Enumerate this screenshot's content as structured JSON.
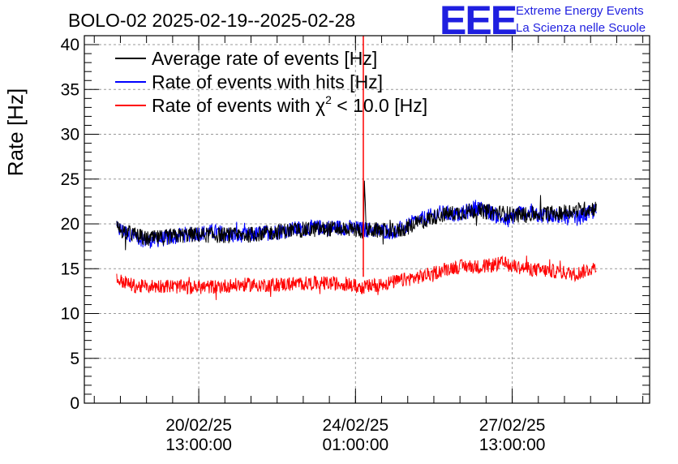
{
  "chart_data": {
    "type": "line",
    "title": "BOLO-02 2025-02-19--2025-02-28",
    "ylabel": "Rate [Hz]",
    "xlabel": "",
    "ylim": [
      0,
      41
    ],
    "yticks": [
      0,
      5,
      10,
      15,
      20,
      25,
      30,
      35,
      40
    ],
    "ytick_labels": [
      "0",
      "5",
      "10",
      "15",
      "20",
      "25",
      "30",
      "35",
      "40"
    ],
    "xlim_days": [
      0,
      10.82
    ],
    "xticks": [
      {
        "t": 2.19,
        "date": "20/02/25",
        "time": "13:00:00"
      },
      {
        "t": 5.19,
        "date": "24/02/25",
        "time": "01:00:00"
      },
      {
        "t": 8.19,
        "date": "27/02/25",
        "time": "13:00:00"
      }
    ],
    "grid": true,
    "legend": {
      "position": "top-left",
      "entries": [
        {
          "label": "Average rate of events [Hz]",
          "color": "#000000"
        },
        {
          "label": "Rate of events with hits [Hz]",
          "color": "#0000ff"
        },
        {
          "label_parts": [
            "Rate of events with ",
            "χ",
            "2",
            " < 10.0 [Hz]"
          ],
          "color": "#ff0000"
        }
      ]
    },
    "series": [
      {
        "name": "Average rate of events",
        "color": "#000000",
        "x": [
          0.62,
          1.2,
          2.0,
          3.0,
          4.0,
          5.0,
          5.34,
          5.36,
          5.4,
          6.0,
          6.8,
          7.5,
          8.3,
          9.0,
          9.8
        ],
        "y": [
          19.5,
          18.3,
          18.8,
          18.7,
          19.3,
          19.5,
          19.2,
          24.0,
          19.3,
          19.2,
          21.0,
          21.5,
          21.0,
          21.2,
          21.8
        ]
      },
      {
        "name": "Rate of events with hits",
        "color": "#0000ff",
        "x": [
          0.62,
          0.9,
          1.2,
          1.6,
          2.0,
          2.5,
          3.0,
          3.5,
          4.0,
          4.5,
          5.0,
          5.3,
          5.6,
          6.0,
          6.3,
          6.8,
          7.2,
          7.5,
          7.8,
          8.1,
          8.3,
          8.6,
          9.0,
          9.4,
          9.8
        ],
        "y": [
          19.5,
          18.8,
          18.1,
          18.4,
          18.9,
          19.1,
          18.6,
          19.0,
          19.4,
          19.6,
          19.6,
          19.4,
          19.3,
          19.1,
          20.2,
          21.2,
          21.0,
          21.9,
          21.2,
          20.3,
          21.3,
          21.1,
          20.9,
          20.6,
          21.5
        ]
      },
      {
        "name": "Rate of events with chi2 < 10.0",
        "color": "#ff0000",
        "x": [
          0.62,
          1.0,
          1.5,
          2.0,
          2.5,
          3.0,
          3.5,
          4.0,
          4.5,
          5.0,
          5.3,
          5.6,
          6.0,
          6.5,
          7.0,
          7.3,
          7.6,
          8.0,
          8.3,
          8.6,
          9.0,
          9.4,
          9.8
        ],
        "y": [
          13.8,
          13.0,
          13.1,
          12.9,
          13.0,
          13.2,
          13.2,
          13.3,
          13.4,
          13.3,
          12.9,
          13.2,
          13.6,
          14.2,
          15.1,
          15.3,
          15.2,
          15.6,
          15.2,
          14.9,
          14.7,
          14.4,
          15.2
        ]
      }
    ],
    "spike": {
      "t": 5.34,
      "color": "#ff0000",
      "y_from": 14.1,
      "y_to": 41
    }
  },
  "logo": {
    "mark": "EEE",
    "line1": "Extreme Energy Events",
    "line2": "La Scienza nelle Scuole",
    "color": "#1f1fe0"
  }
}
